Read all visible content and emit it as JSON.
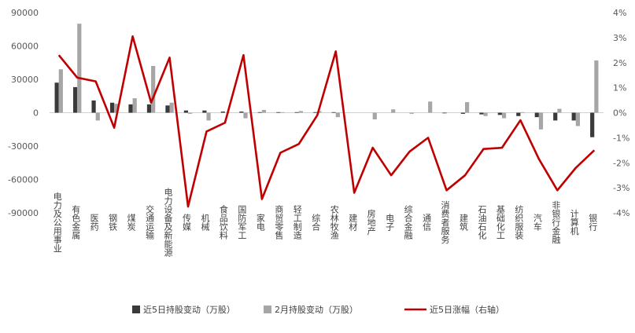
{
  "chart_data": {
    "type": "bar",
    "title": "",
    "categories": [
      "电力及公用事业",
      "有色金属",
      "医药",
      "钢铁",
      "煤炭",
      "交通运输",
      "电力设备及新能源",
      "传媒",
      "机械",
      "食品饮料",
      "国防军工",
      "家电",
      "商贸零售",
      "轻工制造",
      "综合",
      "农林牧渔",
      "建材",
      "房地产",
      "电子",
      "综合金融",
      "通信",
      "消费者服务",
      "建筑",
      "石油石化",
      "基础化工",
      "纺织服装",
      "汽车",
      "非银行金融",
      "计算机",
      "银行"
    ],
    "series": [
      {
        "name": "近5日持股变动（万股）",
        "type": "bar",
        "axis": "left",
        "color": "#3a3a3a",
        "values": [
          27000,
          23000,
          11000,
          9000,
          7500,
          7500,
          6500,
          2000,
          2000,
          1000,
          1000,
          500,
          500,
          500,
          500,
          500,
          0,
          0,
          0,
          0,
          0,
          -500,
          -1000,
          -1500,
          -2000,
          -3000,
          -4000,
          -7000,
          -7000,
          -22000
        ]
      },
      {
        "name": "2月持股变动（万股）",
        "type": "bar",
        "axis": "left",
        "color": "#a6a6a6",
        "values": [
          39000,
          80000,
          -7000,
          8000,
          13000,
          42000,
          9000,
          -1000,
          -7000,
          0,
          -5000,
          2500,
          500,
          1500,
          1500,
          -4000,
          0,
          -6000,
          3000,
          -1000,
          10000,
          0,
          9500,
          -3000,
          -5000,
          500,
          -15000,
          3500,
          -12000,
          47000
        ]
      },
      {
        "name": "近5日涨幅（右轴）",
        "type": "line",
        "axis": "right",
        "color": "#c00000",
        "values": [
          2.3,
          1.4,
          1.25,
          -0.6,
          3.05,
          0.4,
          2.2,
          -3.75,
          -0.75,
          -0.4,
          2.3,
          -3.45,
          -1.6,
          -1.25,
          -0.1,
          2.45,
          -3.2,
          -1.4,
          -2.5,
          -1.55,
          -1.0,
          -3.1,
          -2.5,
          -1.45,
          -1.4,
          -0.3,
          -1.85,
          -3.1,
          -2.2,
          -1.5
        ]
      }
    ],
    "y_left": {
      "min": -90000,
      "max": 90000,
      "ticks": [
        90000,
        60000,
        30000,
        0,
        -30000,
        -60000,
        -90000
      ],
      "tick_labels": [
        "90000",
        "60000",
        "30000",
        "0",
        "-30000",
        "-60000",
        "-90000"
      ]
    },
    "y_right": {
      "min": -4,
      "max": 4,
      "ticks": [
        4,
        3,
        2,
        1,
        0,
        -1,
        -2,
        -3,
        -4
      ],
      "tick_labels": [
        "4%",
        "3%",
        "2%",
        "1%",
        "0%",
        "-1%",
        "-2%",
        "-3%",
        "-4%"
      ]
    },
    "grid": false,
    "legend_position": "bottom"
  }
}
